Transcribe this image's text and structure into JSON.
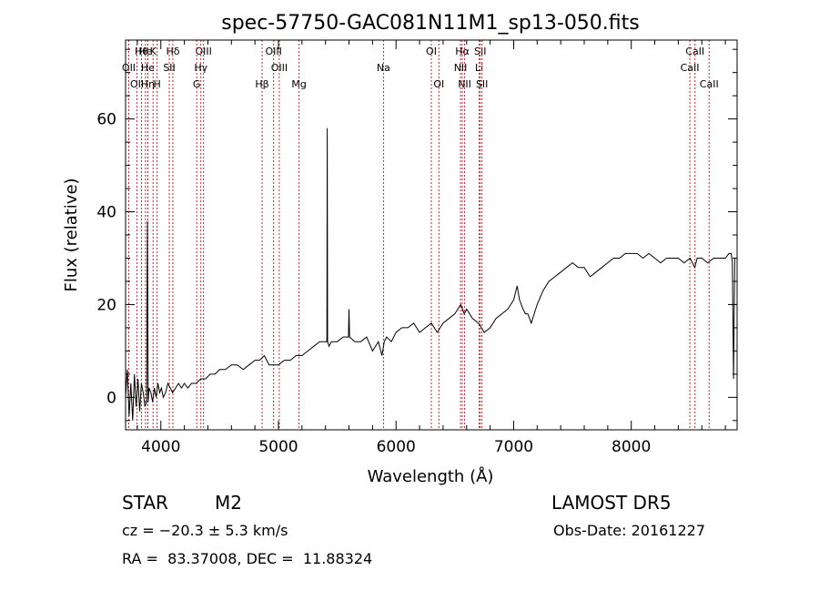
{
  "chart_data": {
    "type": "line",
    "title": "spec-57750-GAC081N11M1_sp13-050.fits",
    "xlabel": "Wavelength (Å)",
    "ylabel": "Flux (relative)",
    "xlim": [
      3700,
      8900
    ],
    "ylim": [
      -7,
      77
    ],
    "xticks": [
      4000,
      5000,
      6000,
      7000,
      8000
    ],
    "yticks": [
      0,
      20,
      40,
      60
    ],
    "grid": false,
    "line_color": "#000000",
    "marker_color": "#b03030",
    "series": [
      {
        "x": [
          3700,
          3715,
          3730,
          3745,
          3760,
          3775,
          3790,
          3805,
          3820,
          3835,
          3850,
          3865,
          3878,
          3886,
          3892,
          3900,
          3915,
          3930,
          3945,
          3960,
          3975,
          3990,
          4005,
          4020,
          4040,
          4060,
          4080,
          4100,
          4125,
          4150,
          4175,
          4200,
          4230,
          4260,
          4300,
          4340,
          4380,
          4420,
          4460,
          4500,
          4550,
          4600,
          4650,
          4700,
          4750,
          4800,
          4840,
          4880,
          4920,
          4960,
          5000,
          5050,
          5100,
          5150,
          5200,
          5250,
          5300,
          5350,
          5400,
          5412,
          5415,
          5418,
          5430,
          5450,
          5500,
          5550,
          5595,
          5600,
          5605,
          5650,
          5700,
          5750,
          5800,
          5850,
          5880,
          5900,
          5920,
          5960,
          6000,
          6050,
          6100,
          6150,
          6200,
          6250,
          6300,
          6350,
          6400,
          6450,
          6500,
          6550,
          6580,
          6600,
          6650,
          6700,
          6750,
          6800,
          6850,
          6900,
          6950,
          7000,
          7030,
          7050,
          7080,
          7100,
          7120,
          7150,
          7200,
          7250,
          7300,
          7350,
          7400,
          7450,
          7500,
          7550,
          7600,
          7650,
          7700,
          7750,
          7800,
          7850,
          7900,
          7950,
          8000,
          8050,
          8100,
          8150,
          8200,
          8250,
          8300,
          8350,
          8400,
          8450,
          8500,
          8540,
          8560,
          8600,
          8650,
          8700,
          8750,
          8800,
          8830,
          8850,
          8860,
          8870,
          8880
        ],
        "y": [
          0,
          6,
          -4,
          3,
          -5,
          5,
          -2,
          4,
          -3,
          3,
          1,
          -2,
          -1,
          38,
          -1,
          2,
          1,
          -1,
          2,
          0,
          3,
          1,
          2,
          0,
          1,
          3,
          2,
          1,
          2,
          3,
          2,
          3,
          2,
          3,
          3,
          4,
          4,
          5,
          5,
          6,
          6,
          7,
          7,
          6,
          7,
          8,
          8,
          9,
          7,
          7,
          7,
          8,
          8,
          9,
          9,
          10,
          11,
          12,
          12,
          12,
          58,
          12,
          11,
          12,
          12,
          13,
          13,
          19,
          13,
          12,
          12,
          13,
          10,
          12,
          9,
          12,
          13,
          12,
          14,
          15,
          15,
          16,
          14,
          15,
          16,
          14,
          16,
          17,
          18,
          20,
          18,
          19,
          17,
          16,
          14,
          15,
          17,
          18,
          19,
          21,
          24,
          21,
          19,
          18,
          18,
          16,
          20,
          23,
          25,
          26,
          27,
          28,
          29,
          28,
          28,
          26,
          27,
          28,
          29,
          30,
          30,
          31,
          31,
          31,
          30,
          31,
          30,
          29,
          30,
          30,
          30,
          29,
          30,
          28,
          30,
          30,
          29,
          30,
          30,
          30,
          31,
          31,
          29,
          4,
          30
        ]
      }
    ],
    "lines": [
      {
        "wavelength": 3835,
        "label": "Hθ",
        "row": 1
      },
      {
        "wavelength": 3869,
        "label": "He",
        "row": 1
      },
      {
        "wavelength": 3934,
        "label": "K",
        "row": 1
      },
      {
        "wavelength": 4102,
        "label": "Hδ",
        "row": 1
      },
      {
        "wavelength": 4363,
        "label": "OIII",
        "row": 1
      },
      {
        "wavelength": 4959,
        "label": "OIII",
        "row": 1
      },
      {
        "wavelength": 6300,
        "label": "OI",
        "row": 1
      },
      {
        "wavelength": 6563,
        "label": "Hα",
        "row": 1
      },
      {
        "wavelength": 6716,
        "label": "SII",
        "row": 1
      },
      {
        "wavelength": 8542,
        "label": "CaII",
        "row": 1
      },
      {
        "wavelength": 3727,
        "label": "OII",
        "row": 2
      },
      {
        "wavelength": 3889,
        "label": "He",
        "row": 2
      },
      {
        "wavelength": 4072,
        "label": "SII",
        "row": 2
      },
      {
        "wavelength": 4340,
        "label": "Hγ",
        "row": 2
      },
      {
        "wavelength": 5007,
        "label": "OIII",
        "row": 2
      },
      {
        "wavelength": 6548,
        "label": "NII",
        "row": 2
      },
      {
        "wavelength": 6707,
        "label": "Li",
        "row": 2
      },
      {
        "wavelength": 8498,
        "label": "CaII",
        "row": 2
      },
      {
        "wavelength": 3797,
        "label": "OII",
        "row": 3
      },
      {
        "wavelength": 3889,
        "label": "Hη",
        "row": 3
      },
      {
        "wavelength": 3968,
        "label": "H",
        "row": 3
      },
      {
        "wavelength": 4305,
        "label": "G",
        "row": 3
      },
      {
        "wavelength": 4861,
        "label": "Hβ",
        "row": 3
      },
      {
        "wavelength": 5175,
        "label": "Mg",
        "row": 3
      },
      {
        "wavelength": 6364,
        "label": "OI",
        "row": 3
      },
      {
        "wavelength": 6583,
        "label": "NII",
        "row": 3
      },
      {
        "wavelength": 6731,
        "label": "SII",
        "row": 3
      },
      {
        "wavelength": 8662,
        "label": "CaII",
        "row": 3
      },
      {
        "wavelength": 5893,
        "label": "Na",
        "row": 0
      }
    ]
  },
  "info": {
    "object_class": "STAR",
    "subclass": "M2",
    "survey": "LAMOST DR5",
    "redshift": "cz = −20.3 ± 5.3 km/s",
    "obs_date": "Obs-Date: 20161227",
    "coords": "RA =  83.37008, DEC =  11.88324"
  }
}
